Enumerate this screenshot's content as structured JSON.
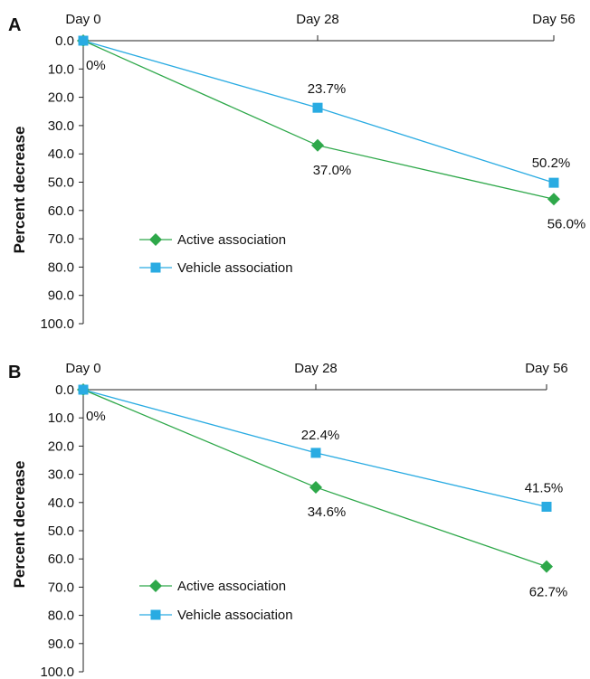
{
  "colors": {
    "active": "#2ea84a",
    "vehicle": "#29abe2"
  },
  "chart_data": [
    {
      "panel": "A",
      "type": "line",
      "categories": [
        "Day 0",
        "Day 28",
        "Day 56"
      ],
      "ylabel": "Percent decrease",
      "ylim": [
        0,
        100
      ],
      "y_inverted": true,
      "y_ticks": [
        "0.0",
        "10.0",
        "20.0",
        "30.0",
        "40.0",
        "50.0",
        "60.0",
        "70.0",
        "80.0",
        "90.0",
        "100.0"
      ],
      "legend_position": "lower-left",
      "series": [
        {
          "name": "Active association",
          "values": [
            0,
            37.0,
            56.0
          ],
          "labels": [
            "0%",
            "37.0%",
            "56.0%"
          ],
          "marker": "diamond",
          "color": "#2ea84a"
        },
        {
          "name": "Vehicle association",
          "values": [
            0,
            23.7,
            50.2
          ],
          "labels": [
            "",
            "23.7%",
            "50.2%"
          ],
          "marker": "square",
          "color": "#29abe2"
        }
      ]
    },
    {
      "panel": "B",
      "type": "line",
      "categories": [
        "Day 0",
        "Day 28",
        "Day 56"
      ],
      "ylabel": "Percent decrease",
      "ylim": [
        0,
        100
      ],
      "y_inverted": true,
      "y_ticks": [
        "0.0",
        "10.0",
        "20.0",
        "30.0",
        "40.0",
        "50.0",
        "60.0",
        "70.0",
        "80.0",
        "90.0",
        "100.0"
      ],
      "legend_position": "lower-left",
      "series": [
        {
          "name": "Active association",
          "values": [
            0,
            34.6,
            62.7
          ],
          "labels": [
            "0%",
            "34.6%",
            "62.7%"
          ],
          "marker": "diamond",
          "color": "#2ea84a"
        },
        {
          "name": "Vehicle association",
          "values": [
            0,
            22.4,
            41.5
          ],
          "labels": [
            "",
            "22.4%",
            "41.5%"
          ],
          "marker": "square",
          "color": "#29abe2"
        }
      ]
    }
  ]
}
